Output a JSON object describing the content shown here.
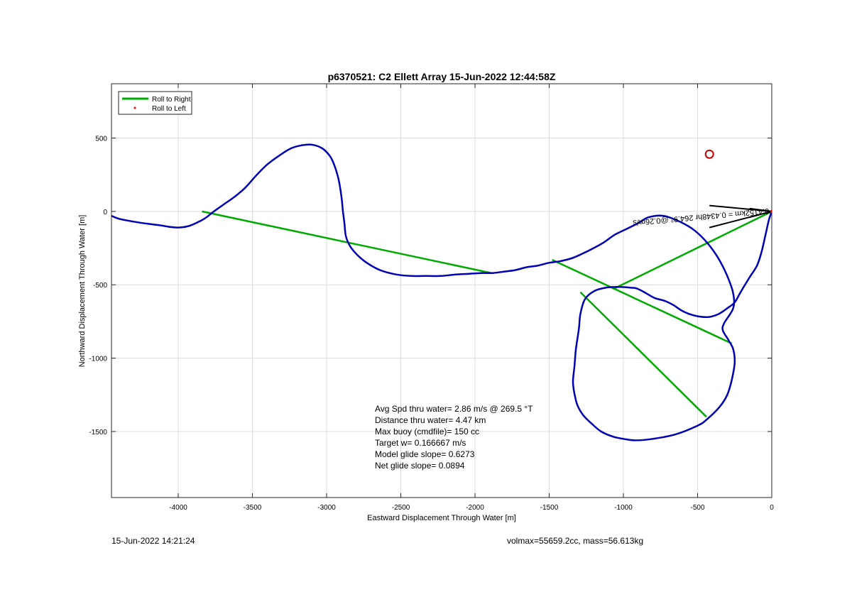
{
  "chart_data": {
    "type": "line",
    "title": "p6370521: C2 Ellett Array 15-Jun-2022 12:44:58Z",
    "xlabel": "Eastward Displacement Through Water [m]",
    "ylabel": "Northward Displacement Through Water [m]",
    "xlim": [
      -4450,
      0
    ],
    "ylim": [
      -1950,
      870
    ],
    "xticks": [
      -4000,
      -3500,
      -3000,
      -2500,
      -2000,
      -1500,
      -1000,
      -500,
      0
    ],
    "yticks": [
      -1500,
      -1000,
      -500,
      0,
      500
    ],
    "grid": true,
    "legend": {
      "placement": "top-left",
      "entries": [
        {
          "label": "Roll to Right",
          "color": "#00aa00",
          "marker": "line"
        },
        {
          "label": "Roll to Left",
          "color": "#ff0000",
          "marker": "dot"
        }
      ]
    },
    "series": [
      {
        "key": "track",
        "color": "#0000b4",
        "x": [
          0,
          -20,
          -40,
          -70,
          -100,
          -150,
          -210,
          -250,
          -300,
          -360,
          -430,
          -520,
          -600,
          -660,
          -720,
          -790,
          -860,
          -910,
          -950,
          -1030,
          -1120,
          -1200,
          -1260,
          -1290,
          -1300,
          -1320,
          -1330,
          -1340,
          -1330,
          -1310,
          -1270,
          -1210,
          -1150,
          -1070,
          -1000,
          -920,
          -800,
          -650,
          -500,
          -440,
          -350,
          -300,
          -270,
          -250,
          -260,
          -290,
          -330,
          -320,
          -260,
          -260,
          -300,
          -360,
          -430,
          -520,
          -620,
          -730,
          -830,
          -900,
          -980,
          -1060,
          -1130,
          -1200,
          -1280,
          -1350,
          -1430,
          -1500,
          -1580,
          -1650,
          -1730,
          -1800,
          -1880,
          -1960,
          -2040,
          -2130,
          -2230,
          -2330,
          -2430,
          -2530,
          -2640,
          -2730,
          -2790,
          -2840,
          -2870,
          -2880,
          -2890,
          -2900,
          -2920,
          -2950,
          -2980,
          -3030,
          -3100,
          -3170,
          -3240,
          -3320,
          -3400,
          -3470,
          -3550,
          -3620,
          -3690,
          -3760,
          -3810,
          -3860,
          -3930,
          -4000,
          -4060,
          -4120,
          -4200,
          -4300,
          -4400,
          -4450
        ],
        "y": [
          0,
          -60,
          -150,
          -280,
          -370,
          -450,
          -550,
          -620,
          -660,
          -700,
          -720,
          -710,
          -680,
          -640,
          -610,
          -590,
          -550,
          -525,
          -520,
          -515,
          -520,
          -545,
          -600,
          -700,
          -800,
          -940,
          -1060,
          -1160,
          -1240,
          -1320,
          -1390,
          -1450,
          -1500,
          -1535,
          -1550,
          -1560,
          -1550,
          -1520,
          -1460,
          -1420,
          -1330,
          -1250,
          -1150,
          -1030,
          -940,
          -880,
          -810,
          -760,
          -660,
          -560,
          -440,
          -320,
          -220,
          -130,
          -70,
          -30,
          -40,
          -80,
          -120,
          -160,
          -210,
          -250,
          -290,
          -320,
          -340,
          -350,
          -370,
          -380,
          -400,
          -410,
          -420,
          -420,
          -425,
          -430,
          -440,
          -440,
          -440,
          -430,
          -400,
          -350,
          -300,
          -240,
          -170,
          -80,
          0,
          100,
          220,
          320,
          380,
          430,
          455,
          450,
          430,
          380,
          320,
          250,
          160,
          100,
          50,
          0,
          -40,
          -70,
          -100,
          -110,
          -105,
          -95,
          -85,
          -70,
          -50,
          -30
        ]
      },
      {
        "key": "roll_right_segments",
        "color": "#00aa00",
        "segments": [
          {
            "x": [
              -3840,
              -1890
            ],
            "y": [
              0,
              -420
            ]
          },
          {
            "x": [
              -1480,
              -270
            ],
            "y": [
              -330,
              -900
            ]
          },
          {
            "x": [
              -1290,
              -440
            ],
            "y": [
              -550,
              -1400
            ]
          },
          {
            "x": [
              -1070,
              0
            ],
            "y": [
              -530,
              0
            ]
          }
        ]
      },
      {
        "key": "roll_left_points",
        "color": "#ff0000",
        "x": [
          0
        ],
        "y": [
          0
        ]
      }
    ],
    "target": {
      "x": -420,
      "y": 390,
      "color": "#cc0000"
    },
    "current_label": "0.4152km = 0.4348hr 264.9° @0.26m/s",
    "annotation_lines": [
      "Avg Spd thru water=  2.86 m/s @ 269.5 °T",
      "Distance thru water=  4.47 km",
      "Max buoy (cmdfile)= 150 cc",
      "Target w= 0.166667 m/s",
      "Model glide slope= 0.6273",
      "Net glide slope= 0.0894"
    ]
  },
  "footer": {
    "left": "15-Jun-2022 14:21:24",
    "right": "volmax=55659.2cc, mass=56.613kg"
  }
}
